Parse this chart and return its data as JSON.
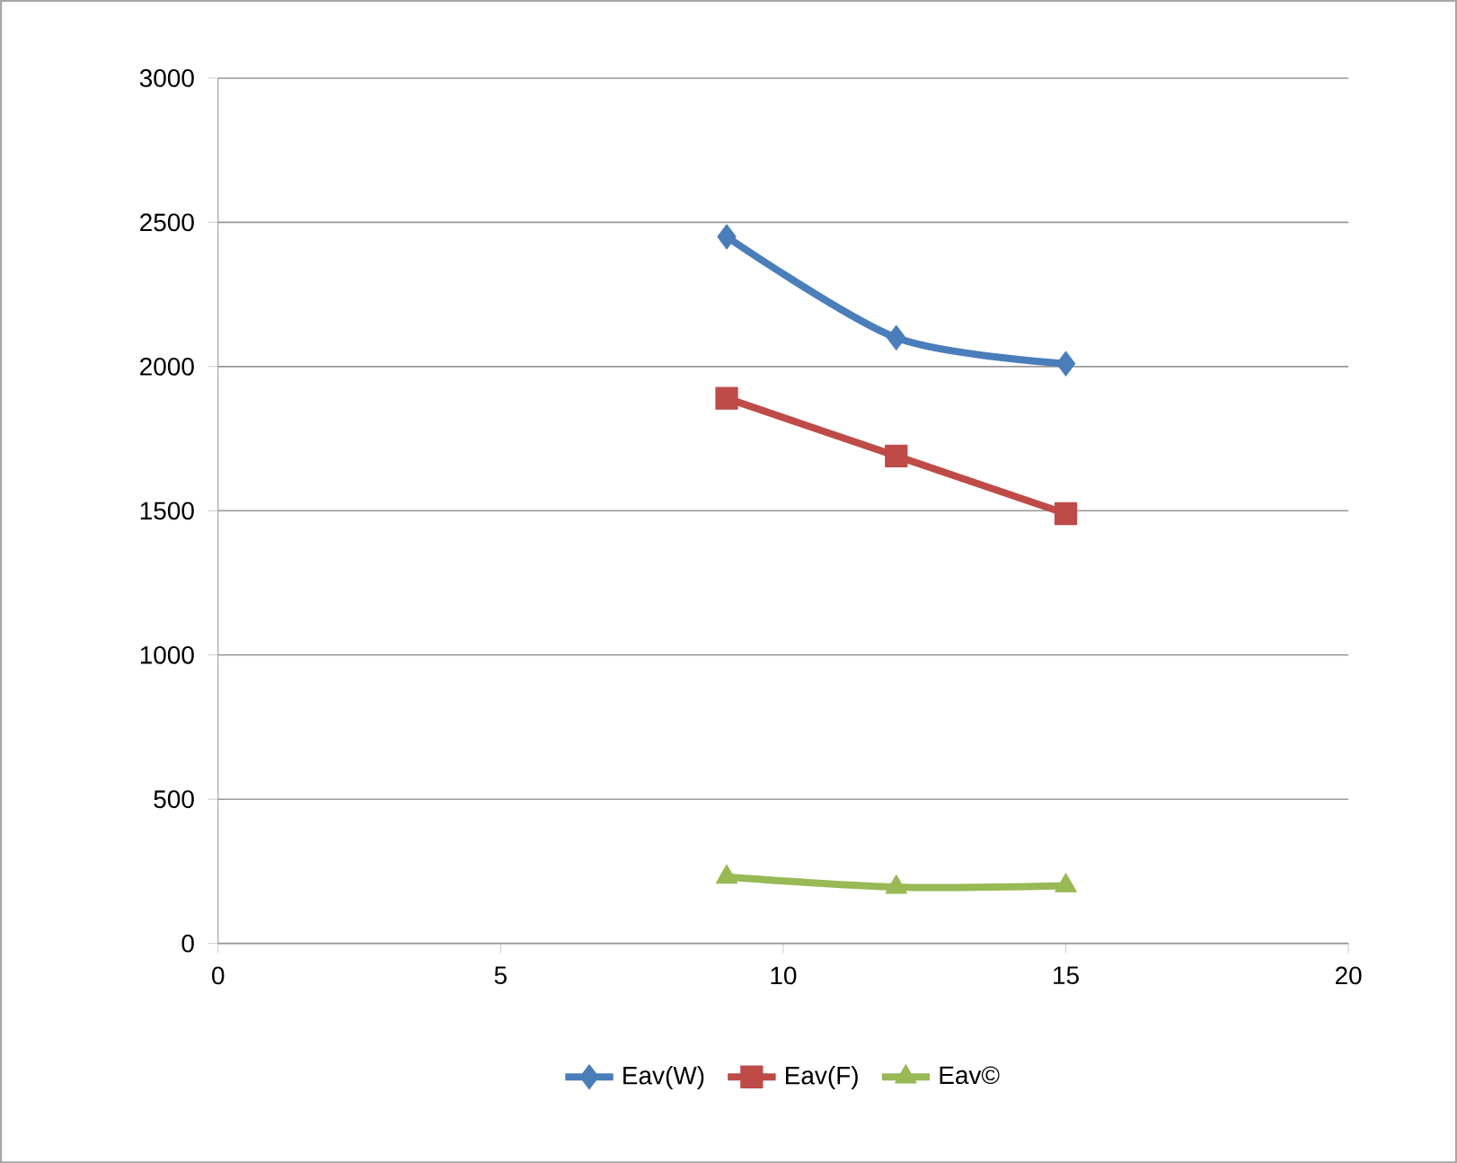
{
  "chart_data": {
    "type": "line",
    "x": [
      9,
      12,
      15
    ],
    "series": [
      {
        "name": "Eav(W)",
        "color": "#4a7ebb",
        "values": [
          2450,
          2100,
          2010
        ],
        "marker": "diamond"
      },
      {
        "name": "Eav(F)",
        "color": "#be4b48",
        "values": [
          1890,
          1690,
          1490
        ],
        "marker": "square"
      },
      {
        "name": "Eav©",
        "color": "#98b954",
        "values": [
          230,
          195,
          200
        ],
        "marker": "triangle"
      }
    ],
    "xlim": [
      0,
      20
    ],
    "xticks": [
      0,
      5,
      10,
      15,
      20
    ],
    "ylim": [
      0,
      3000
    ],
    "yticks": [
      0,
      500,
      1000,
      1500,
      2000,
      2500,
      3000
    ],
    "grid": "y",
    "legend": "bottom",
    "line_style": "solid"
  }
}
